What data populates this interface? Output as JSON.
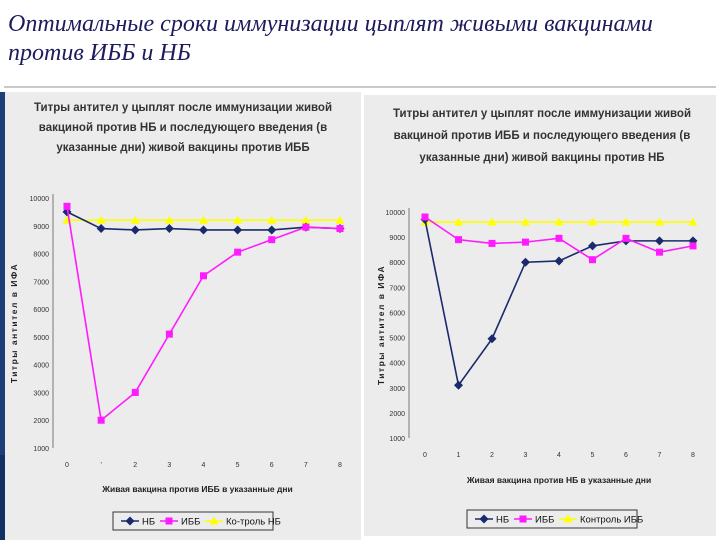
{
  "slide": {
    "title": "Оптимальные сроки иммунизации цыплят живыми вакцинами против ИББ и НБ"
  },
  "colors": {
    "nb": "#1a2a6c",
    "ibb": "#ff1aff",
    "control": "#ffff00"
  },
  "chart_data": [
    {
      "type": "line",
      "title": "Титры антител у цыплят после иммунизации живой вакциной против НБ и последующего введения (в указанные дни) живой вакцины против ИББ",
      "xlabel": "Живая вакцина против ИББ в указанные дни",
      "ylabel": "Титры антител в ИФА",
      "x": [
        "0",
        "'",
        "2",
        "3",
        "4",
        "5",
        "6",
        "7",
        "8"
      ],
      "ylim": [
        1000,
        10000
      ],
      "yticks": [
        "1000",
        "2000",
        "3000",
        "4000",
        "5000",
        "6000",
        "7000",
        "8000",
        "9000",
        "10000"
      ],
      "grid": false,
      "legend": "bottom",
      "series": [
        {
          "name": "НБ",
          "marker": "diamond",
          "color": "#1a2a6c",
          "values": [
            9500,
            8900,
            8850,
            8900,
            8850,
            8850,
            8850,
            8950,
            8900
          ]
        },
        {
          "name": "ИББ",
          "marker": "square",
          "color": "#ff1aff",
          "values": [
            9700,
            2000,
            3000,
            5100,
            7200,
            8050,
            8500,
            8950,
            8900
          ]
        },
        {
          "name": "Ко-троль НБ",
          "marker": "triangle",
          "color": "#ffff00",
          "values": [
            9200,
            9200,
            9200,
            9200,
            9200,
            9200,
            9200,
            9200,
            9200
          ]
        }
      ]
    },
    {
      "type": "line",
      "title": "Титры антител у цыплят после иммунизации живой вакциной против ИББ и последующего введения (в указанные дни) живой вакцины против НБ",
      "xlabel": "Живая вакцина против НБ в указанные дни",
      "ylabel": "Титры антител в ИФА",
      "x": [
        "0",
        "1",
        "2",
        "3",
        "4",
        "5",
        "6",
        "7",
        "8"
      ],
      "ylim": [
        1000,
        10000
      ],
      "yticks": [
        "1000",
        "2000",
        "3000",
        "4000",
        "5000",
        "6000",
        "7000",
        "8000",
        "9000",
        "10000"
      ],
      "grid": false,
      "legend": "bottom",
      "series": [
        {
          "name": "НБ",
          "marker": "diamond",
          "color": "#1a2a6c",
          "values": [
            9700,
            3100,
            4950,
            8000,
            8050,
            8650,
            8850,
            8850,
            8850
          ]
        },
        {
          "name": "ИББ",
          "marker": "square",
          "color": "#ff1aff",
          "values": [
            9800,
            8900,
            8750,
            8800,
            8950,
            8100,
            8950,
            8400,
            8650
          ]
        },
        {
          "name": "Контроль ИББ",
          "marker": "triangle",
          "color": "#ffff00",
          "values": [
            9600,
            9600,
            9600,
            9600,
            9600,
            9600,
            9600,
            9600,
            9600
          ]
        }
      ]
    }
  ]
}
